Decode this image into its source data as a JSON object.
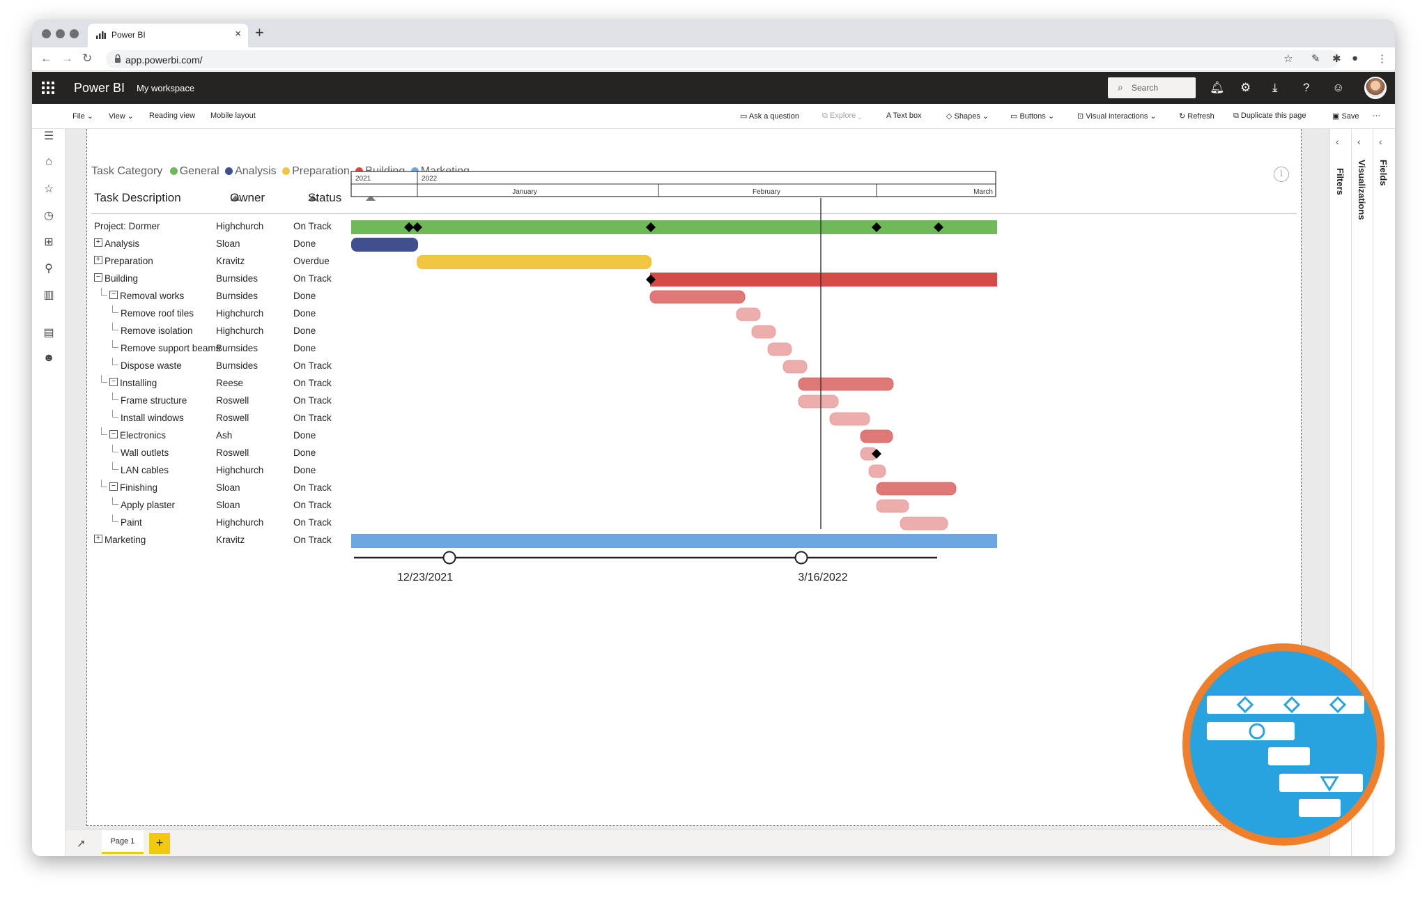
{
  "browser": {
    "tab_title": "Power BI",
    "new_tab_glyph": "+",
    "close_glyph": "×",
    "url": "app.powerbi.com/"
  },
  "pbi": {
    "app_name": "Power BI",
    "workspace": "My workspace",
    "search_placeholder": "Search"
  },
  "ribbon": {
    "file": "File",
    "view": "View",
    "reading_view": "Reading view",
    "mobile_layout": "Mobile layout",
    "ask_question": "Ask a question",
    "explore": "Explore",
    "text_box": "Text box",
    "shapes": "Shapes",
    "buttons": "Buttons",
    "visual_interactions": "Visual interactions",
    "refresh": "Refresh",
    "duplicate_page": "Duplicate this page",
    "save": "Save",
    "more": "···"
  },
  "panes": {
    "filters": "Filters",
    "visualizations": "Visualizations",
    "fields": "Fields"
  },
  "legend": {
    "title": "Task Category",
    "items": [
      {
        "label": "General",
        "color": "#6fb959"
      },
      {
        "label": "Analysis",
        "color": "#3f4f8f"
      },
      {
        "label": "Preparation",
        "color": "#efc542"
      },
      {
        "label": "Building",
        "color": "#d44a47"
      },
      {
        "label": "Marketing",
        "color": "#6ba6e0"
      }
    ]
  },
  "columns": {
    "task": "Task Description",
    "owner": "Owner",
    "status": "Status"
  },
  "timeline_header": {
    "years": [
      "2021",
      "2022"
    ],
    "months": [
      "January",
      "February",
      "March"
    ]
  },
  "rows": [
    {
      "task": "Project: Dormer",
      "owner": "Highchurch",
      "status": "On Track"
    },
    {
      "task": "Analysis",
      "owner": "Sloan",
      "status": "Done"
    },
    {
      "task": "Preparation",
      "owner": "Kravitz",
      "status": "Overdue"
    },
    {
      "task": "Building",
      "owner": "Burnsides",
      "status": "On Track"
    },
    {
      "task": "Removal works",
      "owner": "Burnsides",
      "status": "Done"
    },
    {
      "task": "Remove roof tiles",
      "owner": "Highchurch",
      "status": "Done"
    },
    {
      "task": "Remove isolation",
      "owner": "Highchurch",
      "status": "Done"
    },
    {
      "task": "Remove support beams",
      "owner": "Burnsides",
      "status": "Done"
    },
    {
      "task": "Dispose waste",
      "owner": "Burnsides",
      "status": "On Track"
    },
    {
      "task": "Installing",
      "owner": "Reese",
      "status": "On Track"
    },
    {
      "task": "Frame structure",
      "owner": "Roswell",
      "status": "On Track"
    },
    {
      "task": "Install windows",
      "owner": "Roswell",
      "status": "On Track"
    },
    {
      "task": "Electronics",
      "owner": "Ash",
      "status": "Done"
    },
    {
      "task": "Wall outlets",
      "owner": "Roswell",
      "status": "Done"
    },
    {
      "task": "LAN cables",
      "owner": "Highchurch",
      "status": "Done"
    },
    {
      "task": "Finishing",
      "owner": "Sloan",
      "status": "On Track"
    },
    {
      "task": "Apply plaster",
      "owner": "Sloan",
      "status": "On Track"
    },
    {
      "task": "Paint",
      "owner": "Highchurch",
      "status": "On Track"
    },
    {
      "task": "Marketing",
      "owner": "Kravitz",
      "status": "On Track"
    }
  ],
  "slider": {
    "start_label": "12/23/2021",
    "end_label": "3/16/2022"
  },
  "bottom": {
    "page_tab": "Page 1",
    "add_page": "+"
  }
}
